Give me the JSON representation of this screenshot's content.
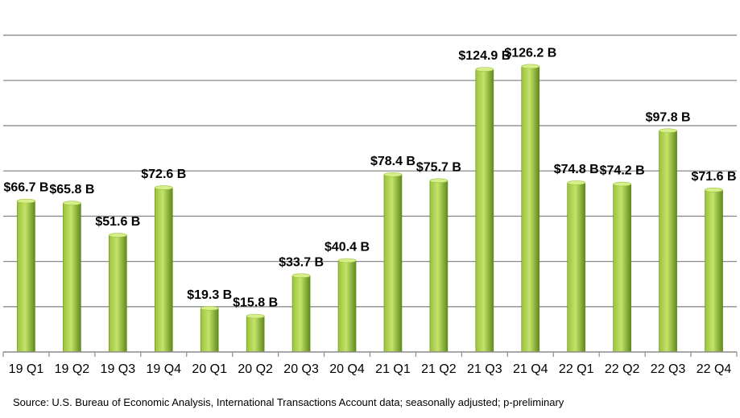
{
  "chart_data": {
    "type": "bar",
    "title": "",
    "xlabel": "",
    "ylabel": "",
    "ylim": [
      0,
      140
    ],
    "grid": true,
    "legend": "none",
    "categories": [
      "19 Q1",
      "19 Q2",
      "19 Q3",
      "19 Q4",
      "20 Q1",
      "20 Q2",
      "20 Q3",
      "20 Q4",
      "21 Q1",
      "21 Q2",
      "21 Q3",
      "21 Q4",
      "22 Q1",
      "22 Q2",
      "22 Q3",
      "22 Q4"
    ],
    "values": [
      66.7,
      65.8,
      51.6,
      72.6,
      19.3,
      15.8,
      33.7,
      40.4,
      78.4,
      75.7,
      124.9,
      126.2,
      74.8,
      74.2,
      97.8,
      71.6
    ],
    "data_labels": [
      "$66.7 B",
      "$65.8 B",
      "$51.6 B",
      "$72.6 B",
      "$19.3 B",
      "$15.8 B",
      "$33.7 B",
      "$40.4 B",
      "$78.4 B",
      "$75.7 B",
      "$124.9 B",
      "$126.2 B",
      "$74.8 B",
      "$74.2 B",
      "$97.8 B",
      "$71.6 B"
    ],
    "colors": {
      "bar_light": "#c4e36a",
      "bar_mid": "#9bc23c",
      "bar_dark": "#5f8a1a",
      "bar_top": "#d6ef8a",
      "grid": "#8c8c8c",
      "axis": "#8c8c8c"
    }
  },
  "source": "Source:  U.S. Bureau of Economic Analysis, International Transactions Account data; seasonally adjusted; p-preliminary"
}
